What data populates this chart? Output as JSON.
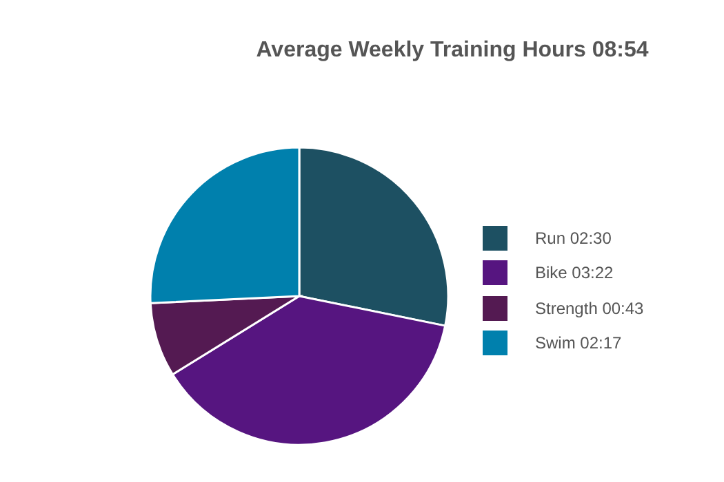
{
  "chart_data": {
    "type": "pie",
    "title": "Average Weekly Training Hours 08:54",
    "categories": [
      "Run 02:30",
      "Bike 03:22",
      "Strength 00:43",
      "Swim 02:17"
    ],
    "values": [
      28.2,
      37.97,
      8.08,
      25.75
    ],
    "colors": [
      "#1d5062",
      "#561580",
      "#541a52",
      "#0080ad"
    ],
    "legend": "right"
  }
}
